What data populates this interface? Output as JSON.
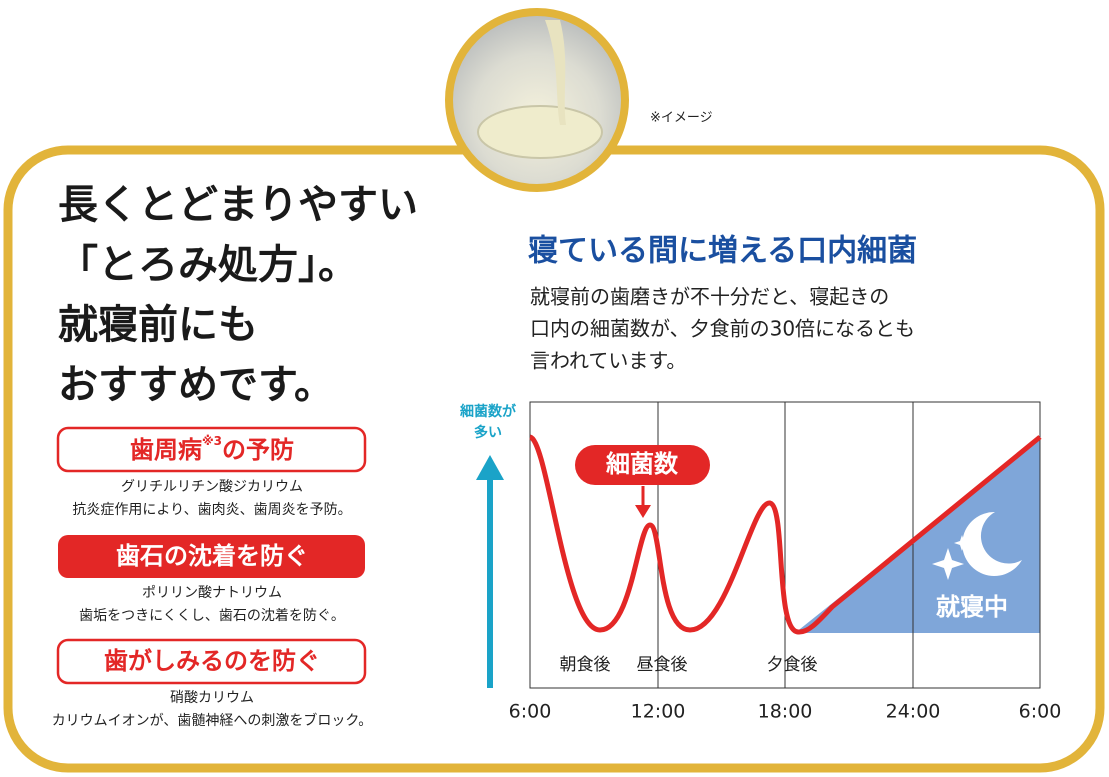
{
  "image_caption": "※イメージ",
  "headline": [
    "長くとどまりやすい",
    "「とろみ処方」。",
    "就寝前にも",
    "おすすめです。"
  ],
  "benefits": [
    {
      "title": [
        "歯周病",
        "※3",
        "の予防"
      ],
      "ingredient": "グリチルリチン酸ジカリウム",
      "effect": "抗炎症作用により、歯肉炎、歯周炎を予防。"
    },
    {
      "title": [
        "歯石の沈着を防ぐ"
      ],
      "ingredient": "ポリリン酸ナトリウム",
      "effect": "歯垢をつきにくくし、歯石の沈着を防ぐ。"
    },
    {
      "title": [
        "歯がしみるのを防ぐ"
      ],
      "ingredient": "硝酸カリウム",
      "effect": "カリウムイオンが、歯髄神経への刺激をブロック。"
    }
  ],
  "diagram": {
    "title": "寝ている間に増える口内細菌",
    "description": [
      "就寝前の歯磨きが不十分だと、寝起きの",
      "口内の細菌数が、夕食前の30倍になるとも",
      "言われています。"
    ],
    "y_label": [
      "細菌数が",
      "多い"
    ],
    "curve_label": "細菌数",
    "meals": [
      "朝食後",
      "昼食後",
      "夕食後"
    ],
    "sleep_label": "就寝中",
    "times": [
      "6:00",
      "12:00",
      "18:00",
      "24:00",
      "6:00"
    ]
  }
}
